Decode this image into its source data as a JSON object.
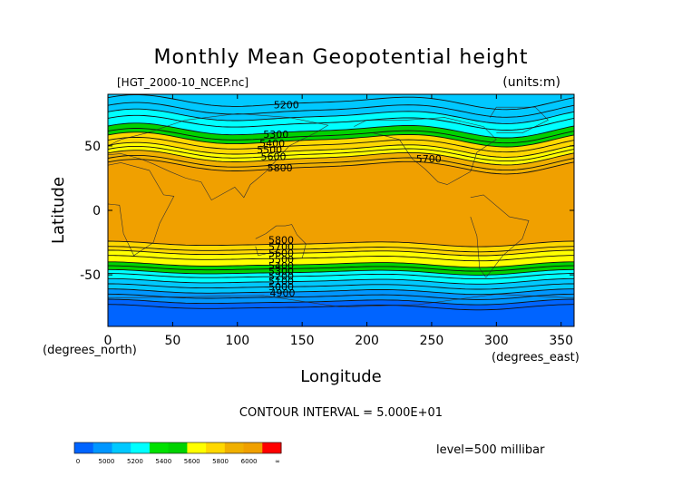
{
  "chart_data": {
    "type": "heatmap",
    "title": "Monthly Mean Geopotential height",
    "source_label": "[HGT_2000-10_NCEP.nc]",
    "units_label": "(units:m)",
    "xlabel": "Longitude",
    "ylabel": "Latitude",
    "x_unit_label": "(degrees_east)",
    "y_unit_label": "(degrees_north)",
    "xlim": [
      0,
      360
    ],
    "ylim": [
      -90,
      90
    ],
    "x_ticks": [
      0,
      50,
      100,
      150,
      200,
      250,
      300,
      350
    ],
    "y_ticks": [
      -50,
      0,
      50
    ],
    "contour_interval_text": "CONTOUR INTERVAL = 5.000E+01",
    "level_text": "level=500 millibar",
    "contour_labels": [
      {
        "text": "5200",
        "lon": 128,
        "lat": 82
      },
      {
        "text": "5300",
        "lon": 120,
        "lat": 59
      },
      {
        "text": "5400",
        "lon": 117,
        "lat": 52
      },
      {
        "text": "5500",
        "lon": 115,
        "lat": 47
      },
      {
        "text": "5600",
        "lon": 118,
        "lat": 42
      },
      {
        "text": "5700",
        "lon": 238,
        "lat": 40
      },
      {
        "text": "5800",
        "lon": 123,
        "lat": 33
      },
      {
        "text": "5800",
        "lon": 124,
        "lat": -23
      },
      {
        "text": "5700",
        "lon": 124,
        "lat": -28
      },
      {
        "text": "5600",
        "lon": 124,
        "lat": -33
      },
      {
        "text": "5500",
        "lon": 124,
        "lat": -38
      },
      {
        "text": "5400",
        "lon": 124,
        "lat": -43
      },
      {
        "text": "5300",
        "lon": 124,
        "lat": -47
      },
      {
        "text": "5200",
        "lon": 124,
        "lat": -51
      },
      {
        "text": "5100",
        "lon": 124,
        "lat": -55
      },
      {
        "text": "5000",
        "lon": 124,
        "lat": -59
      },
      {
        "text": "4900",
        "lon": 125,
        "lat": -64
      }
    ],
    "bands_nh": [
      {
        "lat_bottom": 73,
        "color": "#00c8ff"
      },
      {
        "lat_bottom": 62,
        "color": "#00ffff"
      },
      {
        "lat_bottom": 55,
        "color": "#00d200"
      },
      {
        "lat_bottom": 47,
        "color": "#ffd800"
      },
      {
        "lat_bottom": 41,
        "color": "#ffff00"
      },
      {
        "lat_bottom": 34,
        "color": "#f0b000"
      }
    ],
    "bands_sh": [
      {
        "lat_top": -26,
        "color": "#ffd800"
      },
      {
        "lat_top": -33,
        "color": "#ffff00"
      },
      {
        "lat_top": -42,
        "color": "#00d200"
      },
      {
        "lat_top": -48,
        "color": "#00ffff"
      },
      {
        "lat_top": -55,
        "color": "#00c8ff"
      },
      {
        "lat_top": -63,
        "color": "#0096ff"
      },
      {
        "lat_top": -71,
        "color": "#0064ff"
      }
    ],
    "tropics_color": "#f0a000",
    "colorbar": {
      "colors": [
        "#0064ff",
        "#0096ff",
        "#00c8ff",
        "#00ffff",
        "#00e100",
        "#00d200",
        "#ffff00",
        "#ffd800",
        "#f0b000",
        "#f0a000",
        "#ff0000"
      ],
      "tick_labels": [
        "0",
        "5000",
        "5200",
        "5400",
        "5600",
        "5800",
        "6000",
        "∞"
      ]
    }
  }
}
